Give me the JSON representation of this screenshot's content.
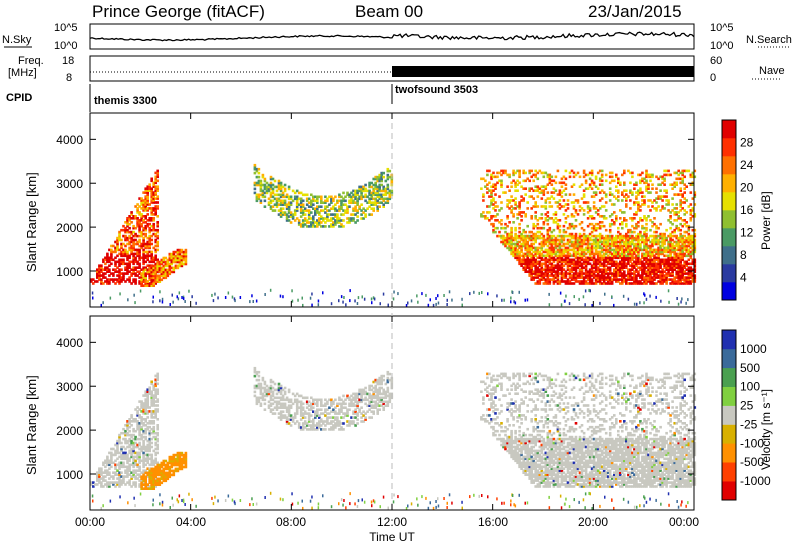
{
  "header": {
    "station": "Prince George (fitACF)",
    "beam": "Beam 00",
    "date": "23/Jan/2015"
  },
  "summary": {
    "left_label_1": "N.Sky",
    "right_label_1": "N.Search",
    "left_label_2a": "Freq.",
    "left_label_2b": "[MHz]",
    "right_label_2": "Nave",
    "cpid_label": "CPID",
    "noise_ticks_left": [
      "10^5",
      "10^0"
    ],
    "noise_ticks_right": [
      "10^5",
      "10^0"
    ],
    "freq_ticks": [
      "18",
      "8"
    ],
    "nave_ticks": [
      "60",
      "0"
    ],
    "cpid_segments": [
      {
        "name": "themis 3300",
        "start_hour": 0
      },
      {
        "name": "twofsound 3503",
        "start_hour": 12
      }
    ]
  },
  "axes": {
    "xlabel": "Time UT",
    "ylabel": "Slant Range [km]",
    "x_ticks": [
      "00:00",
      "04:00",
      "08:00",
      "12:00",
      "16:00",
      "20:00",
      "00:00"
    ],
    "y_ticks": [
      "1000",
      "2000",
      "3000",
      "4000"
    ]
  },
  "colorbars": {
    "power": {
      "label": "Power [dB]",
      "ticks": [
        "4",
        "8",
        "12",
        "16",
        "20",
        "24",
        "28"
      ]
    },
    "velocity": {
      "label": "Velocity [m s⁻¹]",
      "ticks": [
        "1000",
        "500",
        "100",
        "25",
        "-25",
        "-100",
        "-500",
        "-1000"
      ]
    }
  },
  "chart_data": [
    {
      "type": "heatmap",
      "title": "",
      "xlabel": "",
      "ylabel": "Slant Range [km]",
      "x_range_hours": [
        0,
        24
      ],
      "ylim": [
        180,
        4600
      ],
      "colorbar": {
        "label": "Power [dB]",
        "range": [
          0,
          30
        ]
      },
      "colors": [
        "#0000e0",
        "#2a3aa0",
        "#3f6f8a",
        "#4a9a64",
        "#8fbf30",
        "#e6e000",
        "#ffb000",
        "#ff7000",
        "#ff3000",
        "#e00000"
      ],
      "echo_regions": [
        {
          "t_start": 0.0,
          "t_end": 2.7,
          "range_start": 700,
          "range_end": 3500,
          "power": 24
        },
        {
          "t_start": 2.0,
          "t_end": 3.8,
          "range_start": 650,
          "range_end": 1500,
          "power": 22
        },
        {
          "t_start": 6.5,
          "t_end": 12.0,
          "range_start": 2000,
          "range_end": 3500,
          "power": 14
        },
        {
          "t_start": 15.5,
          "t_end": 24.0,
          "range_start": 700,
          "range_end": 3300,
          "power": 20
        }
      ]
    },
    {
      "type": "heatmap",
      "title": "",
      "xlabel": "Time UT",
      "ylabel": "Slant Range [km]",
      "x_range_hours": [
        0,
        24
      ],
      "ylim": [
        180,
        4600
      ],
      "colorbar": {
        "label": "Velocity [m s⁻¹]",
        "levels": [
          1000,
          500,
          100,
          25,
          -25,
          -100,
          -500,
          -1000
        ]
      },
      "colors": [
        "#2030b0",
        "#3a6a9a",
        "#4aa050",
        "#80d040",
        "#c8c8c0",
        "#d8b000",
        "#ff9000",
        "#ff4000",
        "#e00000"
      ],
      "echo_regions": [
        {
          "t_start": 0.0,
          "t_end": 2.7,
          "range_start": 700,
          "range_end": 3500,
          "velocity": 0
        },
        {
          "t_start": 2.3,
          "t_end": 3.8,
          "range_start": 500,
          "range_end": 1500,
          "velocity": -400
        },
        {
          "t_start": 6.5,
          "t_end": 12.0,
          "range_start": 2000,
          "range_end": 3500,
          "velocity": 0
        },
        {
          "t_start": 15.5,
          "t_end": 24.0,
          "range_start": 700,
          "range_end": 3300,
          "velocity": 0
        }
      ]
    }
  ]
}
